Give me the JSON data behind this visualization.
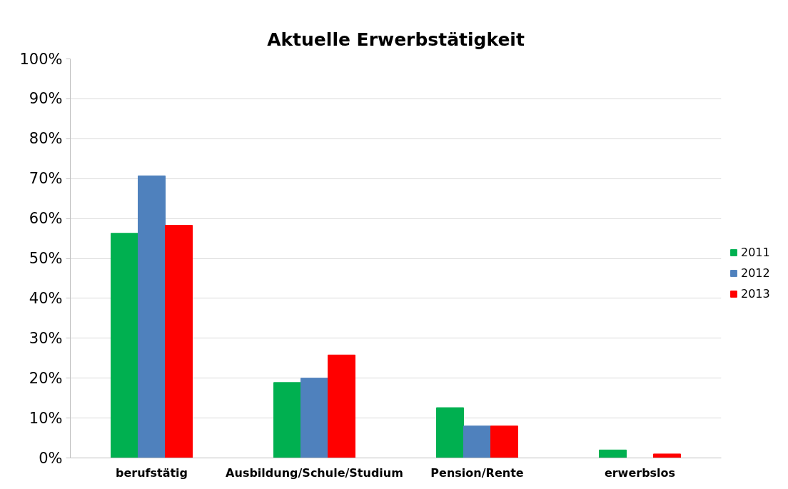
{
  "chart_data": {
    "type": "bar",
    "title": "Aktuelle Erwerbstätigkeit",
    "categories": [
      "berufstätig",
      "Ausbildung/Schule/Studium",
      "Pension/Rente",
      "erwerbslos"
    ],
    "series": [
      {
        "name": "2011",
        "color": "#00b050",
        "values": [
          56.3,
          18.9,
          12.6,
          2.0
        ]
      },
      {
        "name": "2012",
        "color": "#4f81bd",
        "values": [
          70.7,
          20.0,
          8.0,
          null
        ]
      },
      {
        "name": "2013",
        "color": "#ff0000",
        "values": [
          58.3,
          25.8,
          8.0,
          1.0
        ]
      }
    ],
    "ylim": [
      0,
      100
    ],
    "yticks": [
      {
        "value": 0,
        "label": "0%"
      },
      {
        "value": 10,
        "label": "10%"
      },
      {
        "value": 20,
        "label": "20%"
      },
      {
        "value": 30,
        "label": "30%"
      },
      {
        "value": 40,
        "label": "40%"
      },
      {
        "value": 50,
        "label": "50%"
      },
      {
        "value": 60,
        "label": "60%"
      },
      {
        "value": 70,
        "label": "70%"
      },
      {
        "value": 80,
        "label": "80%"
      },
      {
        "value": 90,
        "label": "90%"
      },
      {
        "value": 100,
        "label": "100%"
      }
    ],
    "grid": "y",
    "legend": "right"
  }
}
